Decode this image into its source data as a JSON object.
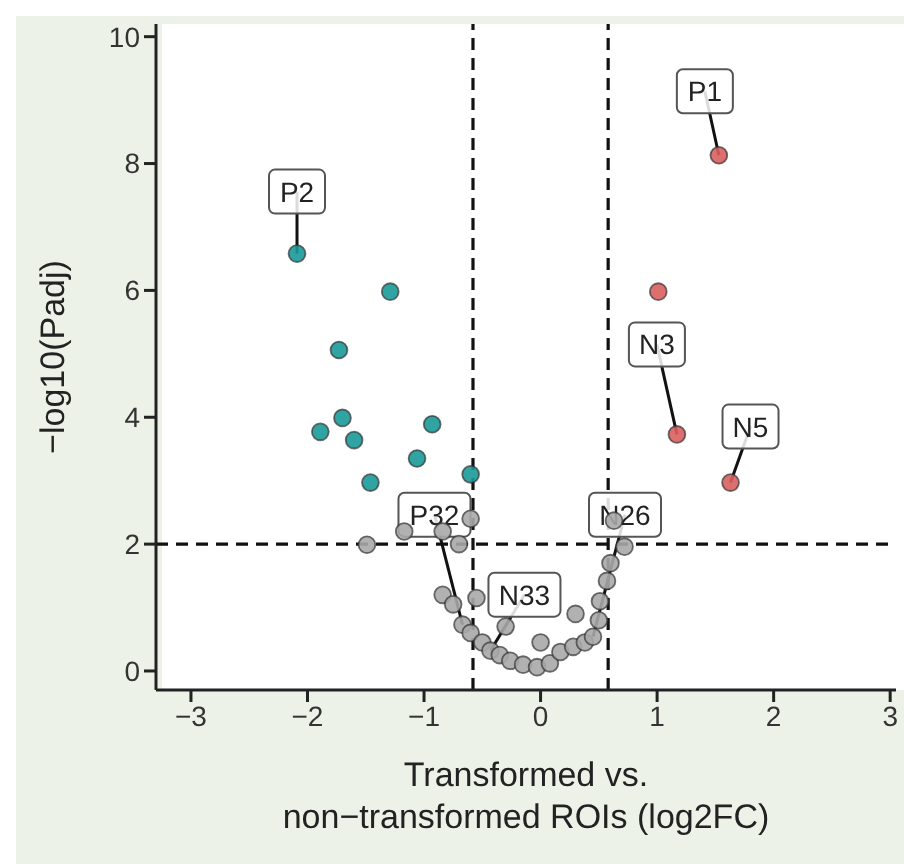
{
  "chart_data": {
    "type": "scatter",
    "xlabel": "Transformed vs.\nnon−transformed ROIs (log2FC)",
    "ylabel": "−log10(Padj)",
    "xlim": [
      -3.3,
      3.05
    ],
    "xticks": [
      -3,
      -2,
      -1,
      0,
      1,
      2,
      3
    ],
    "ylim": [
      -0.3,
      10.2
    ],
    "yticks": [
      0,
      2,
      4,
      6,
      8,
      10
    ],
    "grid": false,
    "legend": false,
    "marker": "circle",
    "series": [
      {
        "color": "#1a9a98",
        "x": [
          -2.09,
          -1.29,
          -1.73,
          -1.89,
          -1.7,
          -1.6,
          -1.46,
          -0.93,
          -1.06,
          -0.6
        ],
        "values": [
          6.58,
          5.98,
          5.06,
          3.77,
          3.99,
          3.64,
          2.97,
          3.89,
          3.35,
          3.1
        ]
      },
      {
        "color": "#d9615f",
        "x": [
          1.53,
          1.01,
          1.17,
          1.63
        ],
        "values": [
          8.13,
          5.98,
          3.73,
          2.97
        ]
      },
      {
        "color": "#a9a9a9",
        "x": [
          -1.49,
          -1.17,
          -0.84,
          -0.7,
          -0.6,
          -0.84,
          -0.75,
          -0.67,
          -0.6,
          -0.5,
          -0.43,
          -0.35,
          -0.26,
          -0.15,
          -0.03,
          0.08,
          0.17,
          0.28,
          0.38,
          0.45,
          0.5,
          0.51,
          0.57,
          0.6,
          0.63,
          0.72,
          -0.55,
          -0.3,
          0.0,
          0.3
        ],
        "values": [
          1.99,
          2.2,
          2.2,
          2.0,
          2.4,
          1.2,
          1.05,
          0.73,
          0.6,
          0.45,
          0.32,
          0.25,
          0.16,
          0.1,
          0.06,
          0.12,
          0.3,
          0.38,
          0.45,
          0.54,
          0.8,
          1.1,
          1.42,
          1.7,
          2.37,
          1.96,
          1.15,
          0.7,
          0.45,
          0.9
        ]
      }
    ],
    "ref_lines": [
      {
        "axis": "x",
        "value": -0.58,
        "line_style": "dashed"
      },
      {
        "axis": "x",
        "value": 0.58,
        "line_style": "dashed"
      },
      {
        "axis": "y",
        "value": 2,
        "line_style": "dashed"
      }
    ],
    "annotations": [
      {
        "text": "P1",
        "x": 1.53,
        "y": 8.13
      },
      {
        "text": "P2",
        "x": -2.09,
        "y": 6.58
      },
      {
        "text": "N3",
        "x": 1.17,
        "y": 3.73
      },
      {
        "text": "N5",
        "x": 1.63,
        "y": 2.97
      },
      {
        "text": "P32",
        "x": -0.67,
        "y": 0.73
      },
      {
        "text": "N26",
        "x": 0.45,
        "y": 0.54
      },
      {
        "text": "N33",
        "x": -0.43,
        "y": 0.32
      }
    ]
  }
}
